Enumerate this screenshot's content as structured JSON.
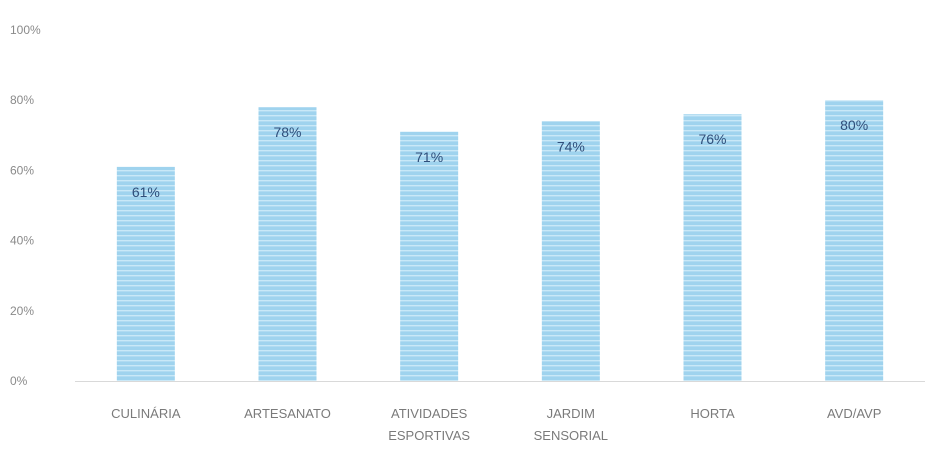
{
  "chart_data": {
    "type": "bar",
    "title": "",
    "xlabel": "",
    "ylabel": "",
    "ylim": [
      0,
      100
    ],
    "y_ticks": [
      "0%",
      "20%",
      "40%",
      "60%",
      "80%",
      "100%"
    ],
    "y_tick_values": [
      0,
      20,
      40,
      60,
      80,
      100
    ],
    "categories": [
      [
        "CULINÁRIA"
      ],
      [
        "ARTESANATO"
      ],
      [
        "ATIVIDADES",
        "ESPORTIVAS"
      ],
      [
        "JARDIM",
        "SENSORIAL"
      ],
      [
        "HORTA"
      ],
      [
        "AVD/AVP"
      ]
    ],
    "values": [
      61,
      78,
      71,
      74,
      76,
      80
    ],
    "data_labels": [
      "61%",
      "78%",
      "71%",
      "74%",
      "76%",
      "80%"
    ],
    "bar_color": "#9fd3ee",
    "bar_stripe_color": "#c9e8f7",
    "grid": false,
    "legend": "none"
  }
}
